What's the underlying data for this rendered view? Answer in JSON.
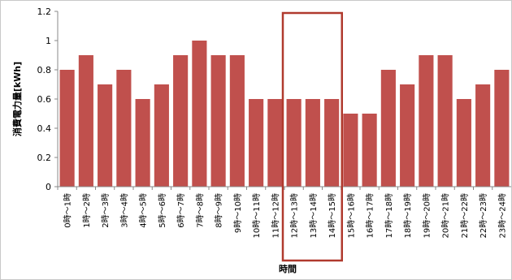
{
  "chart_data": {
    "type": "bar",
    "xlabel": "時間",
    "ylabel": "消費電力量[kWh]",
    "ylim": [
      0,
      1.2
    ],
    "yticks": [
      "0",
      "0.2",
      "0.4",
      "0.6",
      "0.8",
      "1",
      "1.2"
    ],
    "grid": false,
    "bar_color": "#c0504d",
    "highlight_color": "#b03a2e",
    "highlight_categories": [
      "12時～13時",
      "13時～14時",
      "14時～15時"
    ],
    "categories": [
      "0時～1時",
      "1時～2時",
      "2時～3時",
      "3時～4時",
      "4時～5時",
      "5時～6時",
      "6時～7時",
      "7時～8時",
      "8時～9時",
      "9時～10時",
      "10時～11時",
      "11時～12時",
      "12時～13時",
      "13時～14時",
      "14時～15時",
      "15時～16時",
      "16時～17時",
      "17時～18時",
      "18時～19時",
      "19時～20時",
      "20時～21時",
      "21時～22時",
      "22時～23時",
      "23時～24時"
    ],
    "values": [
      0.8,
      0.9,
      0.7,
      0.8,
      0.6,
      0.7,
      0.9,
      1.0,
      0.9,
      0.9,
      0.6,
      0.6,
      0.6,
      0.6,
      0.6,
      0.5,
      0.5,
      0.8,
      0.7,
      0.9,
      0.9,
      0.6,
      0.7,
      0.8
    ]
  }
}
